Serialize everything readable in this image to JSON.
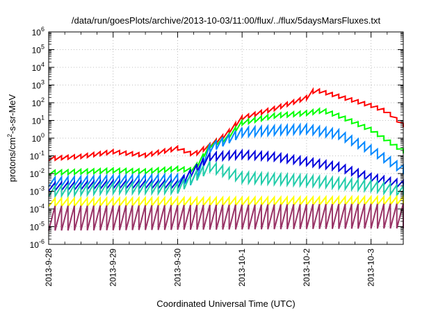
{
  "chart_data": {
    "type": "line",
    "title": "/data/run/goesPlots/archive/2013-10-03/11:00/flux/../flux/5daysMarsFluxes.txt",
    "xlabel": "Coordinated Universal Time (UTC)",
    "ylabel_parts": {
      "pre": "protons/cm",
      "sup": "2",
      "post": "-s-sr-MeV"
    },
    "yscale": "log",
    "ylim": [
      1e-06,
      1000000.0
    ],
    "y_ticks": [
      {
        "exp": "-6"
      },
      {
        "exp": "-5"
      },
      {
        "exp": "-4"
      },
      {
        "exp": "-3"
      },
      {
        "exp": "-2"
      },
      {
        "exp": "-1"
      },
      {
        "exp": "0"
      },
      {
        "exp": "1"
      },
      {
        "exp": "2"
      },
      {
        "exp": "3"
      },
      {
        "exp": "4"
      },
      {
        "exp": "5"
      },
      {
        "exp": "6"
      }
    ],
    "y_tick_base": "10",
    "xlim": [
      "2013-09-28",
      "2013-10-03T12:00"
    ],
    "x_ticks": [
      "2013-9-28",
      "2013-9-29",
      "2013-9-30",
      "2013-10-1",
      "2013-10-2",
      "2013-10-3"
    ],
    "grid": true,
    "sawtooth_period_days": 0.1,
    "series": [
      {
        "color": "#ff0000",
        "dip_ratio": 0.6,
        "points": [
          [
            "2013-09-28T00:00",
            0.09
          ],
          [
            "2013-09-28T12:00",
            0.12
          ],
          [
            "2013-09-29T00:00",
            0.22
          ],
          [
            "2013-09-29T12:00",
            0.14
          ],
          [
            "2013-09-30T00:00",
            0.35
          ],
          [
            "2013-09-30T06:00",
            0.15
          ],
          [
            "2013-09-30T12:00",
            0.5
          ],
          [
            "2013-09-30T18:00",
            2.0
          ],
          [
            "2013-10-01T00:00",
            18.0
          ],
          [
            "2013-10-01T12:00",
            60.0
          ],
          [
            "2013-10-02T00:00",
            250.0
          ],
          [
            "2013-10-02T03:00",
            700.0
          ],
          [
            "2013-10-02T12:00",
            300.0
          ],
          [
            "2013-10-03T00:00",
            90.0
          ],
          [
            "2013-10-03T06:00",
            40.0
          ],
          [
            "2013-10-03T12:00",
            7.0
          ]
        ]
      },
      {
        "color": "#00ff00",
        "dip_ratio": 0.55,
        "points": [
          [
            "2013-09-28T00:00",
            0.015
          ],
          [
            "2013-09-29T00:00",
            0.02
          ],
          [
            "2013-09-29T12:00",
            0.018
          ],
          [
            "2013-09-30T00:00",
            0.025
          ],
          [
            "2013-09-30T06:00",
            0.02
          ],
          [
            "2013-09-30T12:00",
            0.5
          ],
          [
            "2013-09-30T18:00",
            1.2
          ],
          [
            "2013-10-01T00:00",
            10.0
          ],
          [
            "2013-10-01T12:00",
            25.0
          ],
          [
            "2013-10-02T00:00",
            35.0
          ],
          [
            "2013-10-02T06:00",
            50.0
          ],
          [
            "2013-10-02T12:00",
            25.0
          ],
          [
            "2013-10-03T00:00",
            4.0
          ],
          [
            "2013-10-03T12:00",
            0.25
          ]
        ]
      },
      {
        "color": "#0088ff",
        "dip_ratio": 0.3,
        "points": [
          [
            "2013-09-28T00:00",
            0.006
          ],
          [
            "2013-09-29T00:00",
            0.008
          ],
          [
            "2013-09-30T00:00",
            0.009
          ],
          [
            "2013-09-30T06:00",
            0.007
          ],
          [
            "2013-09-30T12:00",
            0.5
          ],
          [
            "2013-10-01T00:00",
            4.0
          ],
          [
            "2013-10-01T12:00",
            5.0
          ],
          [
            "2013-10-02T00:00",
            6.0
          ],
          [
            "2013-10-02T12:00",
            3.0
          ],
          [
            "2013-10-03T00:00",
            0.4
          ],
          [
            "2013-10-03T12:00",
            0.03
          ]
        ]
      },
      {
        "color": "#0000dd",
        "dip_ratio": 0.35,
        "points": [
          [
            "2013-09-28T00:00",
            0.003
          ],
          [
            "2013-09-29T00:00",
            0.004
          ],
          [
            "2013-09-30T00:00",
            0.004
          ],
          [
            "2013-09-30T12:00",
            0.15
          ],
          [
            "2013-10-01T00:00",
            0.2
          ],
          [
            "2013-10-01T12:00",
            0.15
          ],
          [
            "2013-10-02T00:00",
            0.08
          ],
          [
            "2013-10-02T12:00",
            0.04
          ],
          [
            "2013-10-03T00:00",
            0.01
          ],
          [
            "2013-10-03T12:00",
            0.004
          ]
        ]
      },
      {
        "color": "#22ccaa",
        "dip_ratio": 0.25,
        "points": [
          [
            "2013-09-28T00:00",
            0.002
          ],
          [
            "2013-09-29T00:00",
            0.003
          ],
          [
            "2013-09-30T00:00",
            0.003
          ],
          [
            "2013-09-30T12:00",
            0.05
          ],
          [
            "2013-10-01T00:00",
            0.012
          ],
          [
            "2013-10-02T00:00",
            0.008
          ],
          [
            "2013-10-03T00:00",
            0.004
          ],
          [
            "2013-10-03T12:00",
            0.002
          ]
        ]
      },
      {
        "color": "#ffff00",
        "dip_ratio": 0.35,
        "points": [
          [
            "2013-09-28T00:00",
            0.0004
          ],
          [
            "2013-10-03T12:00",
            0.0005
          ]
        ]
      },
      {
        "color": "#993366",
        "dip_ratio": 0.04,
        "points": [
          [
            "2013-09-28T00:00",
            0.00015
          ],
          [
            "2013-10-03T12:00",
            0.0002
          ]
        ]
      }
    ]
  }
}
